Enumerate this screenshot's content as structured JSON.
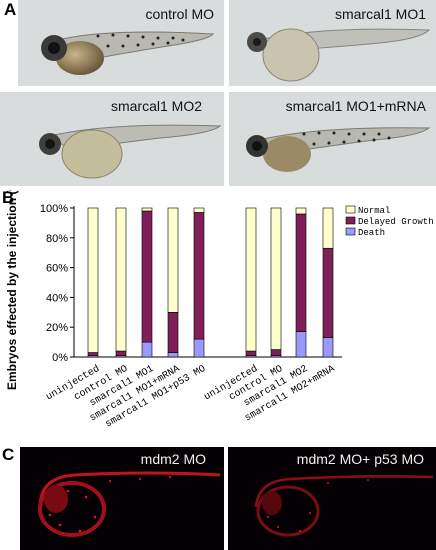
{
  "panels": {
    "a": {
      "letter": "A",
      "images": [
        {
          "caption": "control MO"
        },
        {
          "caption": "smarcal1 MO1"
        },
        {
          "caption": "smarcal1 MO2"
        },
        {
          "caption": "smarcal1 MO1+mRNA"
        }
      ]
    },
    "b": {
      "letter": "B"
    },
    "c": {
      "letter": "C",
      "images": [
        {
          "caption": "mdm2 MO"
        },
        {
          "caption": "mdm2 MO+ p53 MO"
        }
      ]
    }
  },
  "colors": {
    "normal": "#ffffcc",
    "delayed": "#7f1f5a",
    "death": "#9999ff"
  },
  "chart_data": {
    "type": "bar",
    "stacked": true,
    "ylabel": "Embryos effected by the injection (%)",
    "ylim": [
      0,
      100
    ],
    "yticks": [
      "0%",
      "20%",
      "40%",
      "60%",
      "80%",
      "100%"
    ],
    "legend_position": "top-right",
    "groups": [
      {
        "categories": [
          "uninjected",
          "control MO",
          "smarcal1 MO1",
          "smarcal1 MO1+mRNA",
          "smarcal1 MO1+p53 MO"
        ]
      },
      {
        "categories": [
          "uninjected",
          "control MO",
          "smarcal1 MO2",
          "smarcal1 MO2+mRNA"
        ]
      }
    ],
    "categories": [
      "uninjected",
      "control MO",
      "smarcal1 MO1",
      "smarcal1 MO1+mRNA",
      "smarcal1 MO1+p53 MO",
      "uninjected",
      "control MO",
      "smarcal1 MO2",
      "smarcal1 MO2+mRNA"
    ],
    "series": [
      {
        "name": "Death",
        "values": [
          1,
          1,
          10,
          3,
          12,
          1,
          1,
          17,
          13
        ]
      },
      {
        "name": "Delayed Growth",
        "values": [
          2,
          3,
          88,
          27,
          85,
          3,
          4,
          79,
          60
        ]
      },
      {
        "name": "Normal",
        "values": [
          97,
          96,
          2,
          70,
          3,
          96,
          95,
          4,
          27
        ]
      }
    ]
  }
}
